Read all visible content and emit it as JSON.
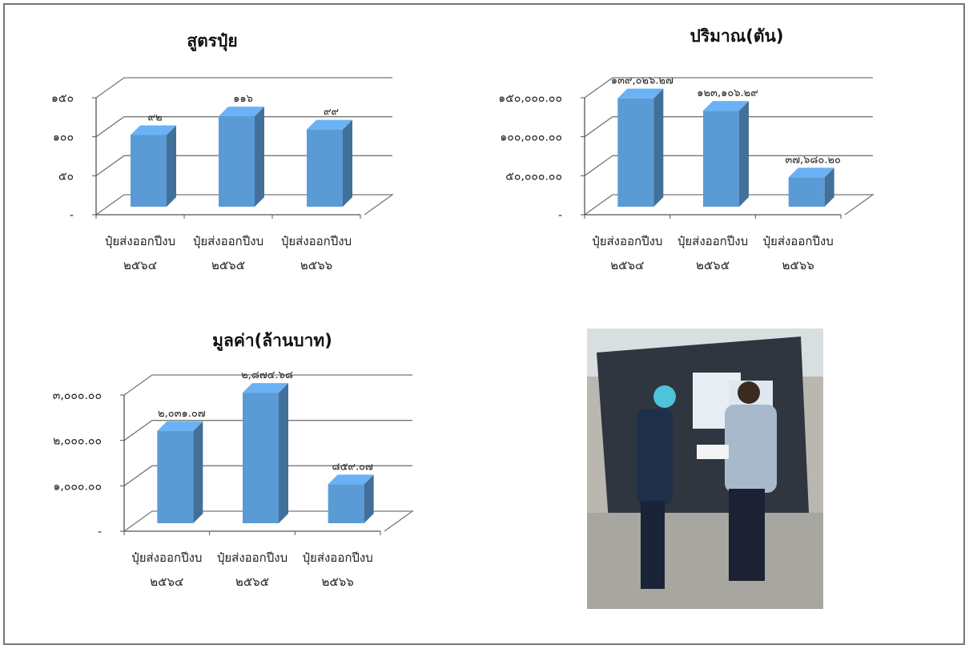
{
  "chart_data": [
    {
      "type": "bar3d",
      "title": "สูตรปุ๋ย",
      "categories": [
        "ปุ๋ยส่งออกปีงบ ๒๕๖๔",
        "ปุ๋ยส่งออกปีงบ ๒๕๖๕",
        "ปุ๋ยส่งออกปีงบ ๒๕๖๖"
      ],
      "values": [
        92,
        116,
        99
      ],
      "value_labels": [
        "๙๒",
        "๑๑๖",
        "๙๙"
      ],
      "color": "#5b9bd5",
      "ylim": [
        0,
        150
      ],
      "yticks": [
        {
          "value": 0,
          "label": "-"
        },
        {
          "value": 50,
          "label": "๕๐"
        },
        {
          "value": 100,
          "label": "๑๐๐"
        },
        {
          "value": 150,
          "label": "๑๕๐"
        }
      ],
      "grid": true
    },
    {
      "type": "bar3d",
      "title": "ปริมาณ(ตัน)",
      "categories": [
        "ปุ๋ยส่งออกปีงบ ๒๕๖๔",
        "ปุ๋ยส่งออกปีงบ ๒๕๖๕",
        "ปุ๋ยส่งออกปีงบ ๒๕๖๖"
      ],
      "values": [
        139026.27,
        123106.29,
        37680.2
      ],
      "value_labels": [
        "๑๓๙,๐๒๖.๒๗",
        "๑๒๓,๑๐๖.๒๙",
        "๓๗,๖๘๐.๒๐"
      ],
      "color": "#5b9bd5",
      "ylim": [
        0,
        150000
      ],
      "yticks": [
        {
          "value": 0,
          "label": "-"
        },
        {
          "value": 50000,
          "label": "๕๐,๐๐๐.๐๐"
        },
        {
          "value": 100000,
          "label": "๑๐๐,๐๐๐.๐๐"
        },
        {
          "value": 150000,
          "label": "๑๕๐,๐๐๐.๐๐"
        }
      ],
      "grid": true
    },
    {
      "type": "bar3d",
      "title": "มูลค่า(ล้านบาท)",
      "categories": [
        "ปุ๋ยส่งออกปีงบ ๒๕๖๔",
        "ปุ๋ยส่งออกปีงบ ๒๕๖๕",
        "ปุ๋ยส่งออกปีงบ ๒๕๖๖"
      ],
      "values": [
        2031.07,
        2874.68,
        859.07
      ],
      "value_labels": [
        "๒,๐๓๑.๐๗",
        "๒,๘๗๔.๖๘",
        "๘๕๙.๐๗"
      ],
      "color": "#5b9bd5",
      "ylim": [
        0,
        3000
      ],
      "yticks": [
        {
          "value": 0,
          "label": "-"
        },
        {
          "value": 1000,
          "label": "๑,๐๐๐.๐๐"
        },
        {
          "value": 2000,
          "label": "๒,๐๐๐.๐๐"
        },
        {
          "value": 3000,
          "label": "๓,๐๐๐.๐๐"
        }
      ],
      "grid": true
    }
  ]
}
